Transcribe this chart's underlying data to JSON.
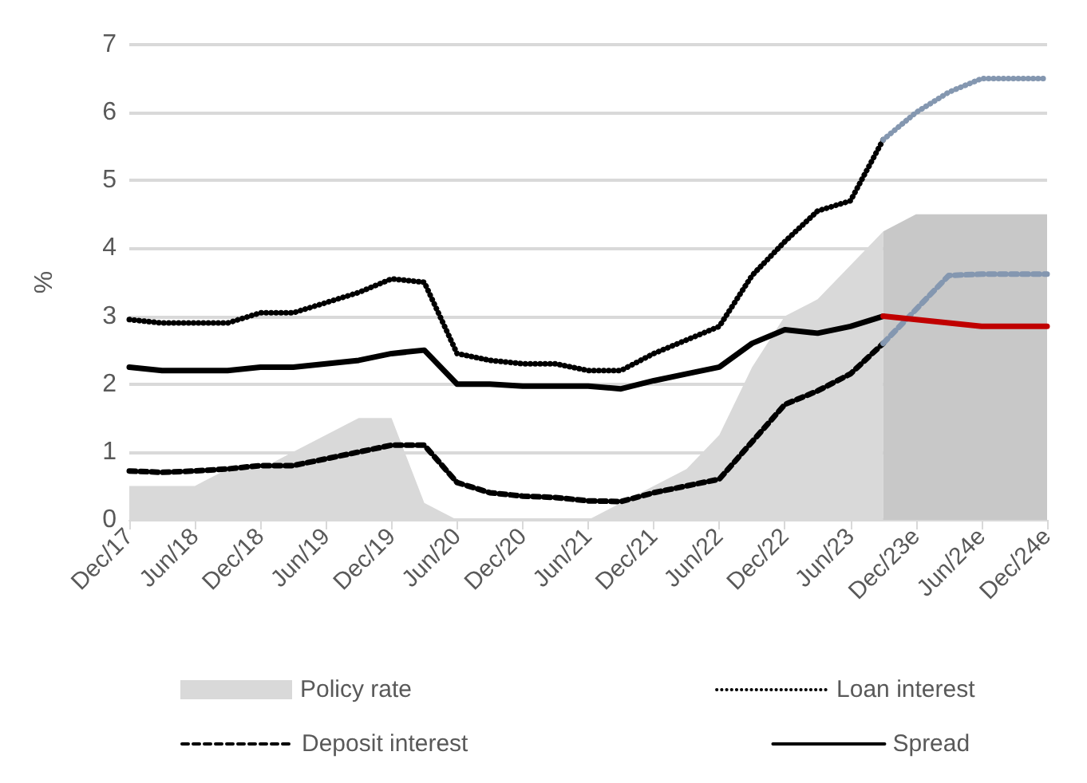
{
  "chart_data": {
    "type": "line",
    "ylabel": "%",
    "categories": [
      "Dec/17",
      null,
      "Jun/18",
      null,
      "Dec/18",
      null,
      "Jun/19",
      null,
      "Dec/19",
      null,
      "Jun/20",
      null,
      "Dec/20",
      null,
      "Jun/21",
      null,
      "Dec/21",
      null,
      "Jun/22",
      null,
      "Dec/22",
      null,
      "Jun/23",
      null,
      "Dec/23e",
      null,
      "Jun/24e",
      null,
      "Dec/24e"
    ],
    "ylim": [
      0,
      7
    ],
    "yticks": [
      0,
      1,
      2,
      3,
      4,
      5,
      6,
      7
    ],
    "grid": "y",
    "legend": "bottom",
    "marker": "none",
    "series": [
      {
        "name": "Policy rate",
        "type": "area",
        "color": "#d9d9d9",
        "values": [
          0.5,
          0.5,
          0.5,
          0.75,
          0.75,
          1.0,
          1.25,
          1.5,
          1.5,
          0.25,
          0,
          0,
          0,
          0,
          0,
          0.25,
          0.5,
          0.75,
          1.25,
          2.25,
          3.0,
          3.25,
          3.75,
          4.25,
          null,
          null,
          null,
          null,
          null
        ]
      },
      {
        "type": "area",
        "color": "#c8c8c8",
        "values": [
          null,
          null,
          null,
          null,
          null,
          null,
          null,
          null,
          null,
          null,
          null,
          null,
          null,
          null,
          null,
          null,
          null,
          null,
          null,
          null,
          null,
          null,
          null,
          4.25,
          4.5,
          4.5,
          4.5,
          4.5,
          4.5
        ]
      },
      {
        "name": "Loan interest",
        "line_style": "dotted",
        "color": "#000000",
        "values": [
          2.95,
          2.9,
          2.9,
          2.9,
          3.05,
          3.05,
          3.2,
          3.35,
          3.55,
          3.5,
          2.45,
          2.35,
          2.3,
          2.3,
          2.2,
          2.2,
          2.45,
          2.65,
          2.85,
          3.6,
          4.1,
          4.55,
          4.7,
          5.6,
          null,
          null,
          null,
          null,
          null
        ]
      },
      {
        "line_style": "dotted",
        "color": "#8497b0",
        "values": [
          null,
          null,
          null,
          null,
          null,
          null,
          null,
          null,
          null,
          null,
          null,
          null,
          null,
          null,
          null,
          null,
          null,
          null,
          null,
          null,
          null,
          null,
          null,
          5.6,
          6.0,
          6.3,
          6.5,
          6.5,
          6.5
        ]
      },
      {
        "name": "Deposit interest",
        "line_style": "dashed",
        "color": "#000000",
        "values": [
          0.72,
          0.7,
          0.72,
          0.75,
          0.8,
          0.8,
          0.9,
          1.0,
          1.1,
          1.1,
          0.55,
          0.4,
          0.35,
          0.33,
          0.28,
          0.27,
          0.4,
          0.5,
          0.6,
          1.15,
          1.7,
          1.9,
          2.15,
          2.6,
          null,
          null,
          null,
          null,
          null
        ]
      },
      {
        "line_style": "dashed",
        "color": "#8497b0",
        "values": [
          null,
          null,
          null,
          null,
          null,
          null,
          null,
          null,
          null,
          null,
          null,
          null,
          null,
          null,
          null,
          null,
          null,
          null,
          null,
          null,
          null,
          null,
          null,
          2.6,
          3.1,
          3.6,
          3.62,
          3.62,
          3.62
        ]
      },
      {
        "name": "Spread",
        "line_style": "solid",
        "color": "#000000",
        "values": [
          2.25,
          2.2,
          2.2,
          2.2,
          2.25,
          2.25,
          2.3,
          2.35,
          2.45,
          2.5,
          2.0,
          2.0,
          1.97,
          1.97,
          1.97,
          1.93,
          2.05,
          2.15,
          2.25,
          2.6,
          2.8,
          2.75,
          2.85,
          3.0,
          null,
          null,
          null,
          null,
          null
        ]
      },
      {
        "line_style": "solid",
        "color": "#c00000",
        "values": [
          null,
          null,
          null,
          null,
          null,
          null,
          null,
          null,
          null,
          null,
          null,
          null,
          null,
          null,
          null,
          null,
          null,
          null,
          null,
          null,
          null,
          null,
          null,
          3.0,
          2.95,
          2.9,
          2.85,
          2.85,
          2.85
        ]
      }
    ]
  }
}
